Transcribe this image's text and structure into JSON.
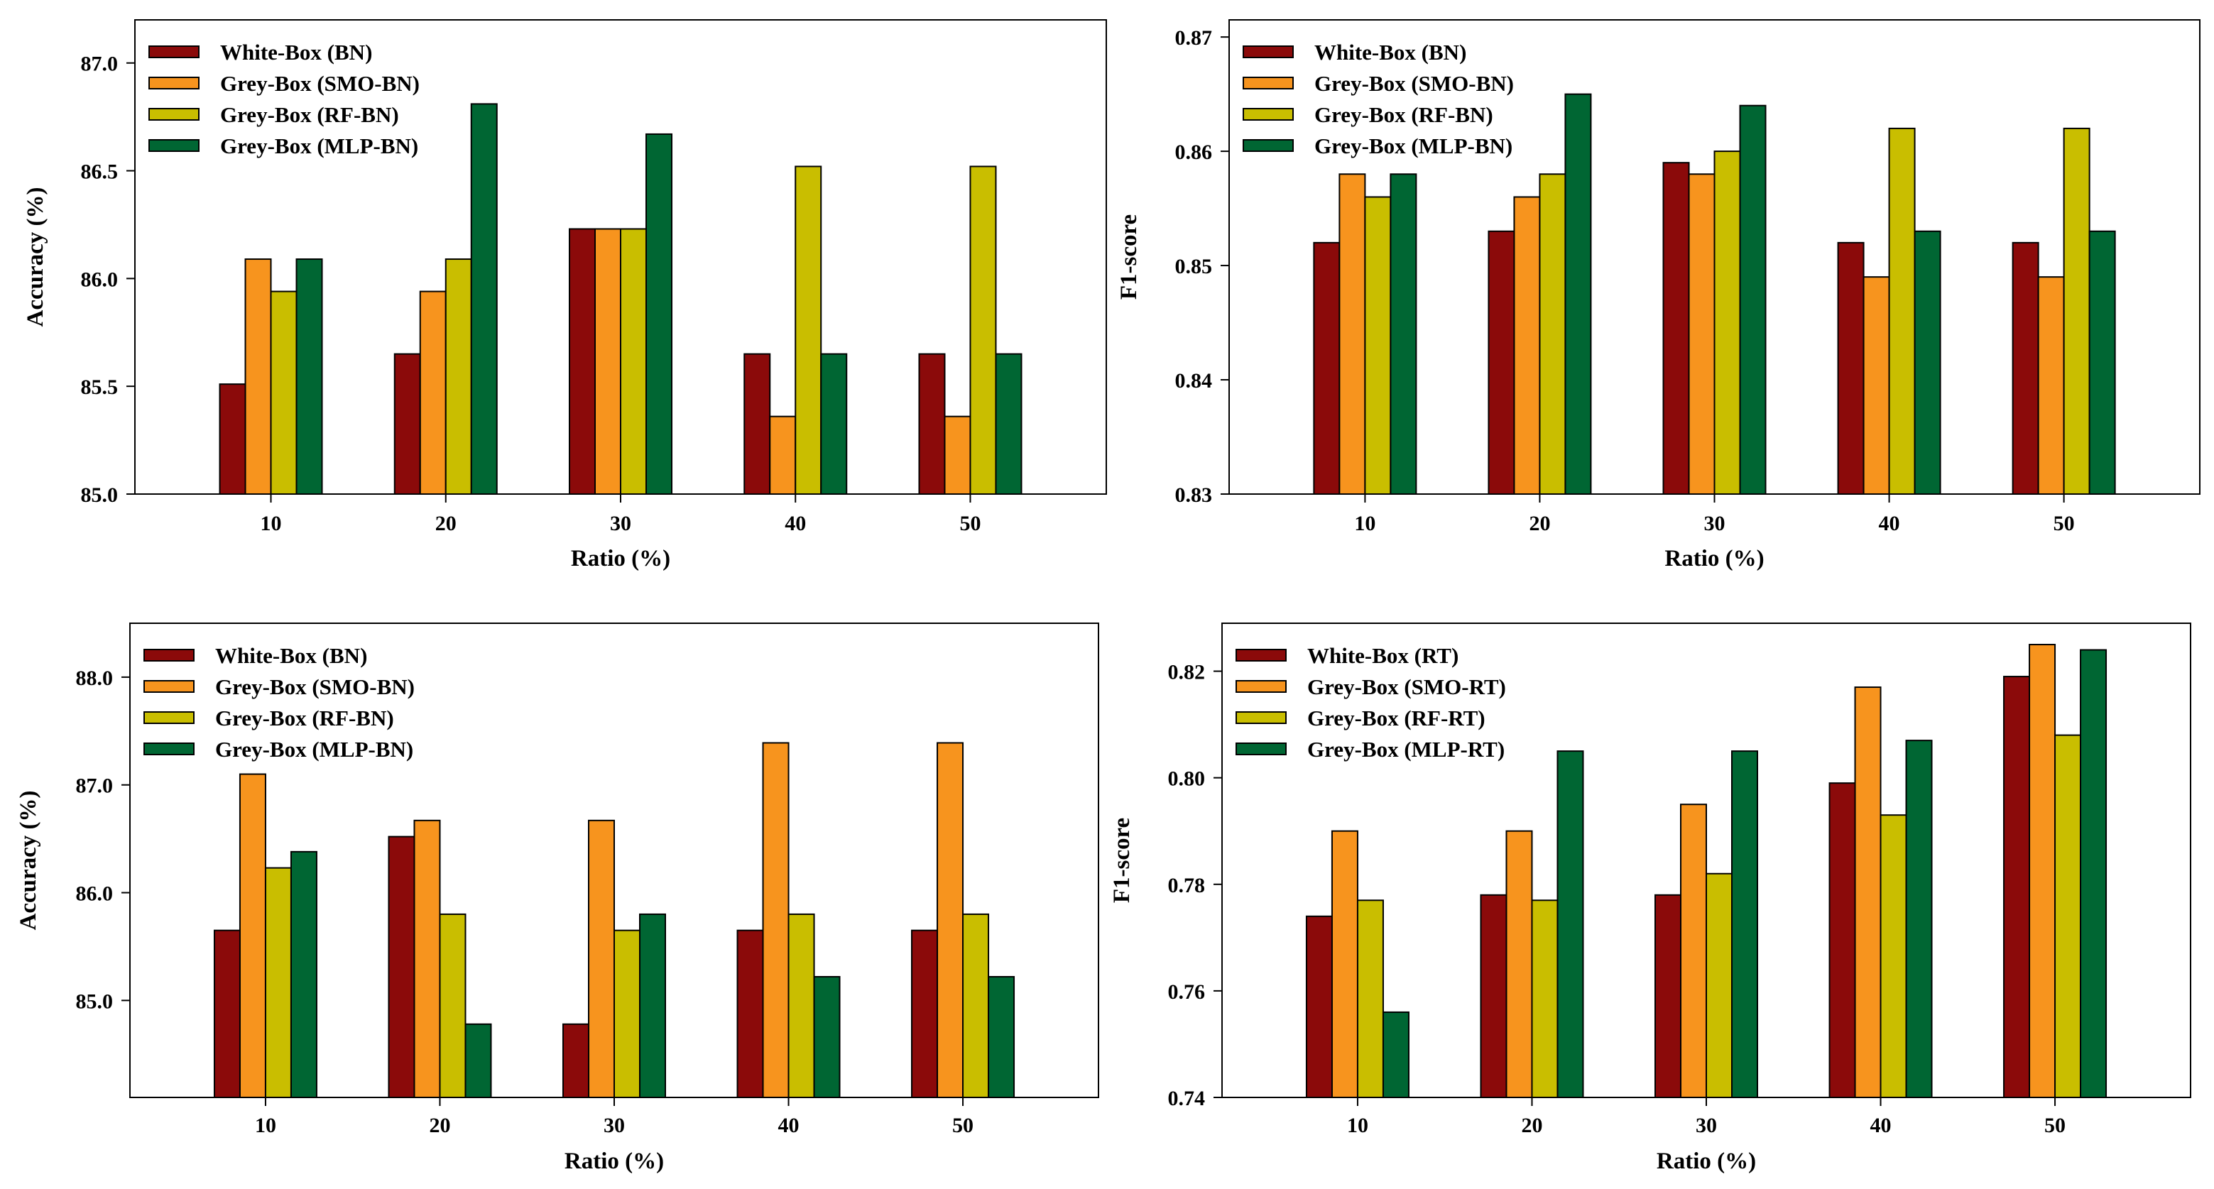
{
  "colors": [
    "#8B0A0A",
    "#F7941E",
    "#C9BE00",
    "#006633"
  ],
  "chart_data": [
    {
      "type": "bar",
      "xlabel": "Ratio (%)",
      "ylabel": "Accuracy (%)",
      "categories": [
        "10",
        "20",
        "30",
        "40",
        "50"
      ],
      "ylim": [
        85.0,
        87.2
      ],
      "yticks": [
        85.0,
        85.5,
        86.0,
        86.5,
        87.0
      ],
      "ytick_labels": [
        "85.0",
        "85.5",
        "86.0",
        "86.5",
        "87.0"
      ],
      "legend_position": "top-left",
      "series": [
        {
          "name": "White-Box (BN)",
          "values": [
            85.51,
            85.65,
            86.23,
            85.65,
            85.65
          ]
        },
        {
          "name": "Grey-Box (SMO-BN)",
          "values": [
            86.09,
            85.94,
            86.23,
            85.36,
            85.36
          ]
        },
        {
          "name": "Grey-Box (RF-BN)",
          "values": [
            85.94,
            86.09,
            86.23,
            86.52,
            86.52
          ]
        },
        {
          "name": "Grey-Box (MLP-BN)",
          "values": [
            86.09,
            86.81,
            86.67,
            85.65,
            85.65
          ]
        }
      ]
    },
    {
      "type": "bar",
      "xlabel": "Ratio (%)",
      "ylabel": "F1-score",
      "categories": [
        "10",
        "20",
        "30",
        "40",
        "50"
      ],
      "ylim": [
        0.83,
        0.8715
      ],
      "yticks": [
        0.83,
        0.84,
        0.85,
        0.86,
        0.87
      ],
      "ytick_labels": [
        "0.83",
        "0.84",
        "0.85",
        "0.86",
        "0.87"
      ],
      "legend_position": "top-left",
      "series": [
        {
          "name": "White-Box (BN)",
          "values": [
            0.852,
            0.853,
            0.859,
            0.852,
            0.852
          ]
        },
        {
          "name": "Grey-Box (SMO-BN)",
          "values": [
            0.858,
            0.856,
            0.858,
            0.849,
            0.849
          ]
        },
        {
          "name": "Grey-Box (RF-BN)",
          "values": [
            0.856,
            0.858,
            0.86,
            0.862,
            0.862
          ]
        },
        {
          "name": "Grey-Box (MLP-BN)",
          "values": [
            0.858,
            0.865,
            0.864,
            0.853,
            0.853
          ]
        }
      ]
    },
    {
      "type": "bar",
      "xlabel": "Ratio (%)",
      "ylabel": "Accuracy (%)",
      "categories": [
        "10",
        "20",
        "30",
        "40",
        "50"
      ],
      "ylim": [
        84.1,
        88.5
      ],
      "yticks": [
        85.0,
        86.0,
        87.0,
        88.0
      ],
      "ytick_labels": [
        "85.0",
        "86.0",
        "87.0",
        "88.0"
      ],
      "legend_position": "top-left",
      "series": [
        {
          "name": "White-Box (BN)",
          "values": [
            85.65,
            86.52,
            84.78,
            85.65,
            85.65
          ]
        },
        {
          "name": "Grey-Box (SMO-BN)",
          "values": [
            87.1,
            86.67,
            86.67,
            87.39,
            87.39
          ]
        },
        {
          "name": "Grey-Box (RF-BN)",
          "values": [
            86.23,
            85.8,
            85.65,
            85.8,
            85.8
          ]
        },
        {
          "name": "Grey-Box (MLP-BN)",
          "values": [
            86.38,
            84.78,
            85.8,
            85.22,
            85.22
          ]
        }
      ]
    },
    {
      "type": "bar",
      "xlabel": "Ratio (%)",
      "ylabel": "F1-score",
      "categories": [
        "10",
        "20",
        "30",
        "40",
        "50"
      ],
      "ylim": [
        0.74,
        0.829
      ],
      "yticks": [
        0.74,
        0.76,
        0.78,
        0.8,
        0.82
      ],
      "ytick_labels": [
        "0.74",
        "0.76",
        "0.78",
        "0.80",
        "0.82"
      ],
      "legend_position": "top-left",
      "series": [
        {
          "name": "White-Box (RT)",
          "values": [
            0.774,
            0.778,
            0.778,
            0.799,
            0.819
          ]
        },
        {
          "name": "Grey-Box (SMO-RT)",
          "values": [
            0.79,
            0.79,
            0.795,
            0.817,
            0.825
          ]
        },
        {
          "name": "Grey-Box (RF-RT)",
          "values": [
            0.777,
            0.777,
            0.782,
            0.793,
            0.808
          ]
        },
        {
          "name": "Grey-Box (MLP-RT)",
          "values": [
            0.756,
            0.805,
            0.805,
            0.807,
            0.824
          ]
        }
      ]
    }
  ]
}
